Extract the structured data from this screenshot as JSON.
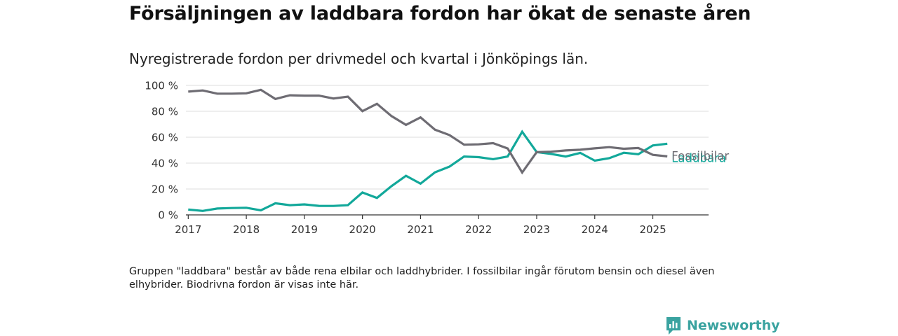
{
  "header": {
    "title": "Försäljningen av laddbara fordon har ökat de senaste åren",
    "subtitle": "Nyregistrerade fordon per drivmedel och kvartal i Jönköpings län."
  },
  "footer": {
    "note": "Gruppen \"laddbara\" består av både rena elbilar och laddhybrider. I fossilbilar ingår förutom bensin och diesel även elhybrider. Biodrivna fordon är visas inte här.",
    "brand": "Newsworthy",
    "brand_icon": "newsworthy-logo-icon",
    "brand_color": "#3aa3a0"
  },
  "chart_data": {
    "type": "line",
    "x_axis": {
      "ticks": [
        "2017",
        "2018",
        "2019",
        "2020",
        "2021",
        "2022",
        "2023",
        "2024",
        "2025"
      ],
      "range": [
        2016.96,
        2025.96
      ]
    },
    "y_axis": {
      "ticks": [
        "0 %",
        "20 %",
        "40 %",
        "60 %",
        "80 %",
        "100 %"
      ],
      "tick_values": [
        0,
        20,
        40,
        60,
        80,
        100
      ],
      "range": [
        0,
        100
      ]
    },
    "grid": true,
    "x": [
      2017.0,
      2017.25,
      2017.5,
      2017.75,
      2018.0,
      2018.25,
      2018.5,
      2018.75,
      2019.0,
      2019.25,
      2019.5,
      2019.75,
      2020.0,
      2020.25,
      2020.5,
      2020.75,
      2021.0,
      2021.25,
      2021.5,
      2021.75,
      2022.0,
      2022.25,
      2022.5,
      2022.75,
      2023.0,
      2023.25,
      2023.5,
      2023.75,
      2024.0,
      2024.25,
      2024.5,
      2024.75,
      2025.0,
      2025.25
    ],
    "series": [
      {
        "name": "Fossilbilar",
        "color": "#6e6c73",
        "values": [
          95.2,
          96.1,
          93.6,
          93.6,
          93.9,
          96.6,
          89.5,
          92.4,
          92.1,
          92.1,
          89.9,
          91.3,
          80.1,
          85.8,
          76.3,
          69.5,
          75.3,
          65.8,
          61.6,
          54.2,
          54.5,
          55.4,
          51.3,
          32.7,
          48.5,
          48.8,
          49.8,
          50.3,
          51.4,
          52.3,
          51.1,
          51.7,
          46.4,
          45.2
        ]
      },
      {
        "name": "Laddbara",
        "color": "#12a89a",
        "values": [
          4.1,
          3.1,
          4.9,
          5.3,
          5.5,
          3.5,
          9.0,
          7.5,
          8.1,
          7.0,
          6.9,
          7.5,
          17.3,
          13.1,
          22.2,
          30.2,
          24.1,
          32.9,
          37.3,
          45.1,
          44.6,
          43.0,
          45.1,
          64.2,
          48.5,
          47.1,
          45.1,
          47.9,
          41.9,
          43.8,
          48.0,
          46.8,
          53.6,
          55.0
        ]
      }
    ]
  }
}
